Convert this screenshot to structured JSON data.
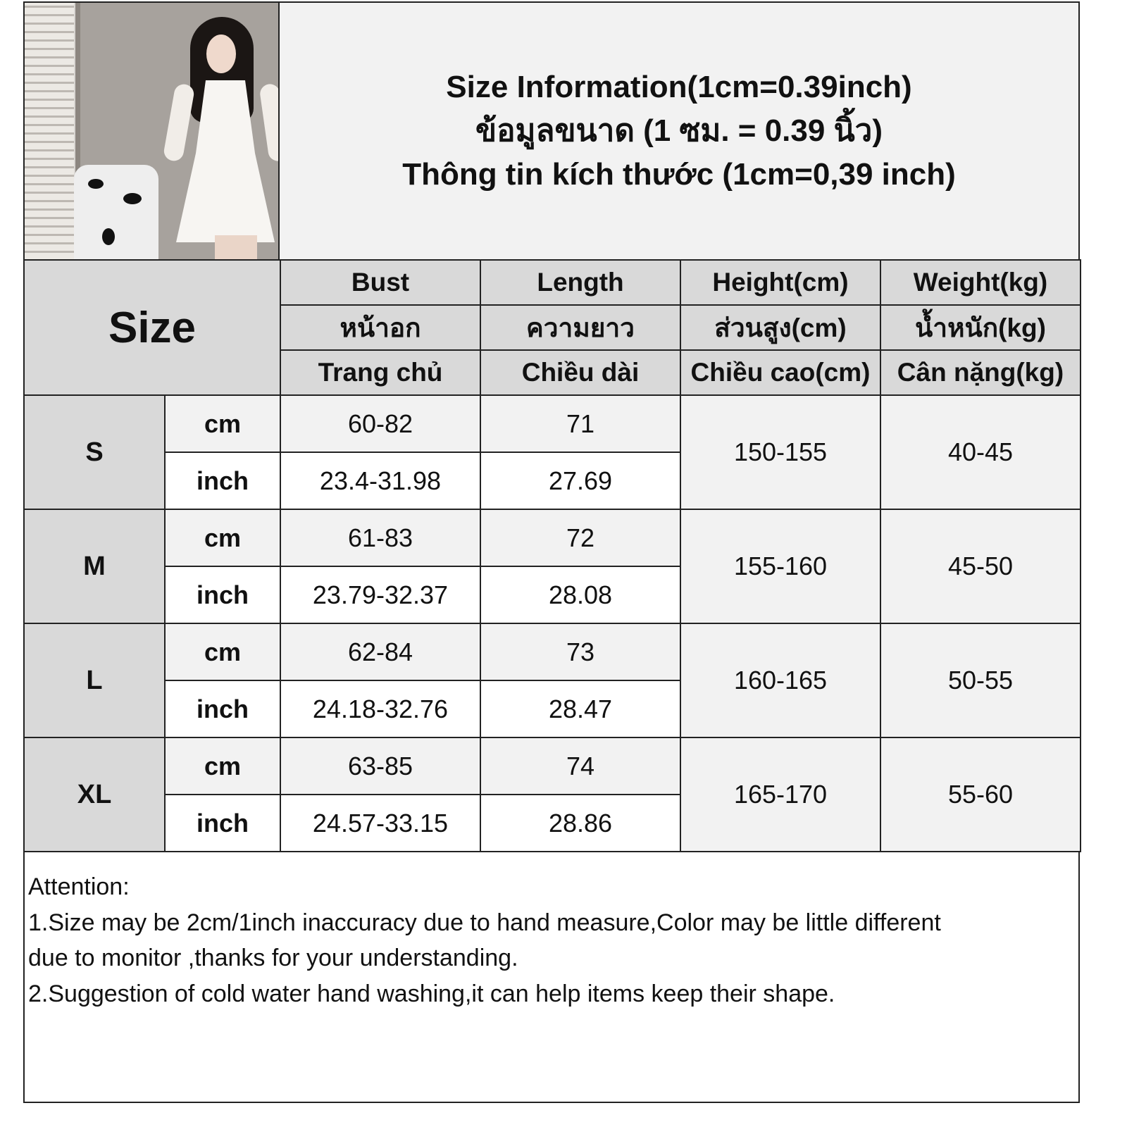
{
  "title_lines": [
    "Size Information(1cm=0.39inch)",
    "ข้อมูลขนาด (1 ซม. = 0.39 นิ้ว)",
    "Thông tin kích thước (1cm=0,39 inch)"
  ],
  "size_label": "Size",
  "headers": [
    [
      "Bust",
      "หน้าอก",
      "Trang chủ"
    ],
    [
      "Length",
      "ความยาว",
      "Chiều dài"
    ],
    [
      "Height(cm)",
      "ส่วนสูง(cm)",
      "Chiều cao(cm)"
    ],
    [
      "Weight(kg)",
      "น้ำหนัก(kg)",
      "Cân nặng(kg)"
    ]
  ],
  "units": {
    "cm": "cm",
    "inch": "inch"
  },
  "rows": [
    {
      "size": "S",
      "cm": {
        "bust": "60-82",
        "length": "71"
      },
      "inch": {
        "bust": "23.4-31.98",
        "length": "27.69"
      },
      "height": "150-155",
      "weight": "40-45"
    },
    {
      "size": "M",
      "cm": {
        "bust": "61-83",
        "length": "72"
      },
      "inch": {
        "bust": "23.79-32.37",
        "length": "28.08"
      },
      "height": "155-160",
      "weight": "45-50"
    },
    {
      "size": "L",
      "cm": {
        "bust": "62-84",
        "length": "73"
      },
      "inch": {
        "bust": "24.18-32.76",
        "length": "28.47"
      },
      "height": "160-165",
      "weight": "50-55"
    },
    {
      "size": "XL",
      "cm": {
        "bust": "63-85",
        "length": "74"
      },
      "inch": {
        "bust": "24.57-33.15",
        "length": "28.86"
      },
      "height": "165-170",
      "weight": "55-60"
    }
  ],
  "notes": [
    "Attention:",
    "1.Size may be 2cm/1inch inaccuracy due to hand measure,Color may be little different",
    "due to monitor ,thanks for your understanding.",
    "2.Suggestion of cold water hand washing,it can help items keep their shape."
  ],
  "colors": {
    "header_bg": "#d9d9d9",
    "cm_row_bg": "#f2f2f2",
    "inch_row_bg": "#ffffff",
    "border": "#222222"
  }
}
